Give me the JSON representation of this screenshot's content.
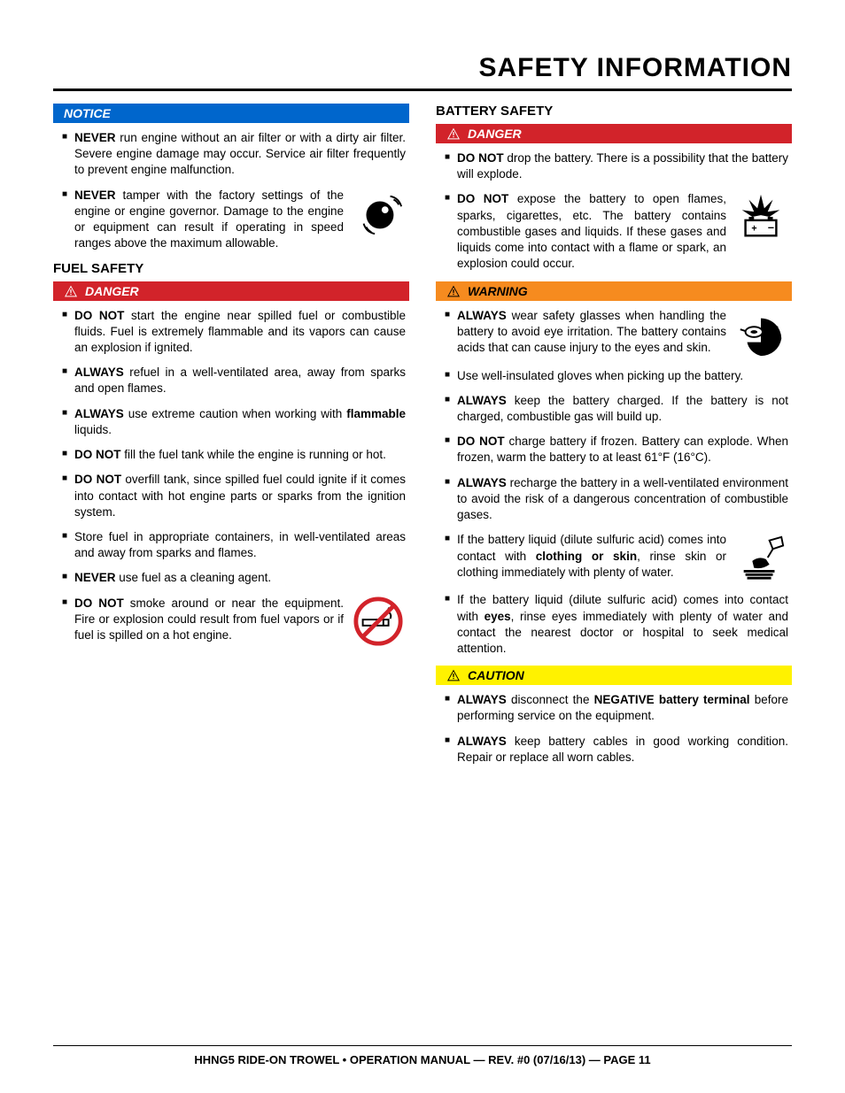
{
  "title": "SAFETY INFORMATION",
  "footer": "HHNG5 RIDE-ON TROWEL • OPERATION MANUAL — REV. #0 (07/16/13) — PAGE 11",
  "labels": {
    "notice": "NOTICE",
    "danger": "DANGER",
    "warning": "WARNING",
    "caution": "CAUTION"
  },
  "colors": {
    "notice_bg": "#0066cc",
    "danger_bg": "#d2232a",
    "warning_bg": "#f68b1f",
    "caution_bg": "#fff200"
  },
  "left": {
    "notice_items": [
      "<b>NEVER</b> run engine without an air filter or with a dirty air filter. Severe engine damage may occur. Service air filter frequently to prevent engine malfunction.",
      "<b>NEVER</b> tamper with the factory settings of the engine or engine governor. Damage to the engine or equipment can result if operating in speed ranges above the maximum allowable."
    ],
    "fuel_heading": "FUEL SAFETY",
    "fuel_items": [
      "<b>DO NOT</b> start the engine near spilled fuel or combustible fluids. Fuel is extremely flammable and its vapors can cause an explosion if ignited.",
      "<b>ALWAYS</b> refuel in a well-ventilated area, away from sparks and open flames.",
      "<b>ALWAYS</b> use extreme caution when working with <b>flammable</b> liquids.",
      "<b>DO NOT</b> fill the fuel tank while the engine is running or hot.",
      "<b>DO NOT</b> overfill tank, since spilled fuel could ignite if it comes into contact with hot engine parts or sparks from the ignition system.",
      "Store fuel in appropriate containers, in well-ventilated areas and away from sparks and flames.",
      "<b>NEVER</b> use fuel as a cleaning agent.",
      "<b>DO NOT</b> smoke around or near the equipment. Fire or explosion could result from fuel vapors or if fuel is spilled on a hot engine."
    ]
  },
  "right": {
    "battery_heading": "BATTERY SAFETY",
    "danger_items": [
      "<b>DO NOT</b> drop the battery. There is a possibility that the battery will explode.",
      "<b>DO NOT</b> expose the battery to open flames, sparks, cigarettes, etc. The battery contains combustible gases and liquids. If these gases and liquids come into contact with a flame or spark, an explosion could occur."
    ],
    "warning_items": [
      "<b>ALWAYS</b> wear safety glasses when handling the battery to avoid eye irritation. The battery contains acids that can cause injury to the eyes and skin.",
      "Use well-insulated gloves when picking up the battery.",
      "<b>ALWAYS</b> keep the battery charged. If the battery is not charged, combustible gas will build up.",
      "<b>DO NOT</b> charge battery if frozen. Battery can explode. When frozen, warm the battery to at least 61°F (16°C).",
      "<b>ALWAYS</b> recharge the battery in a well-ventilated environment to avoid the risk of a dangerous concentration of combustible gases.",
      "If the battery liquid (dilute sulfuric acid) comes into contact with <b>clothing or skin</b>, rinse skin or clothing immediately with plenty of water.",
      "If the battery liquid (dilute sulfuric acid) comes into contact with <b>eyes</b>, rinse eyes immediately with plenty of water and contact the nearest doctor or hospital to seek medical attention."
    ],
    "caution_items": [
      "<b>ALWAYS</b> disconnect the <b>NEGATIVE battery terminal</b> before performing service on the equipment.",
      "<b>ALWAYS</b> keep battery cables in good working condition. Repair or replace all worn cables."
    ]
  }
}
